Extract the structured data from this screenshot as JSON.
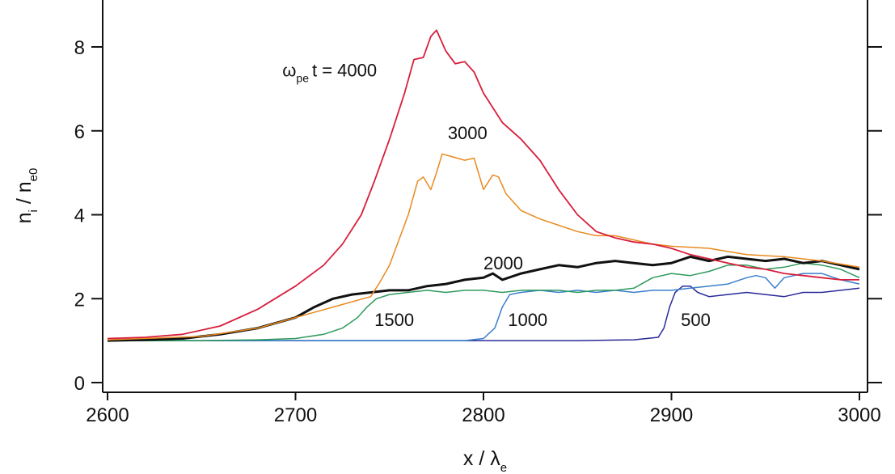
{
  "chart_data": {
    "type": "line",
    "title": "",
    "xlabel": {
      "main": "x / λ",
      "sub": "e"
    },
    "ylabel": {
      "part1": "n",
      "sub1": "i",
      "part2": " / n",
      "sub2": "e0"
    },
    "xlim": [
      2600,
      3000
    ],
    "ylim": [
      -0.2,
      9.2
    ],
    "x_ticks": [
      2600,
      2700,
      2800,
      2900,
      3000
    ],
    "y_ticks": [
      0,
      2,
      4,
      6,
      8
    ],
    "grid": false,
    "legend": "none",
    "series": [
      {
        "name": "500",
        "label_prefix": "",
        "label_sub": "",
        "label_text": "500",
        "label_at": [
          2905,
          1.35
        ],
        "color": "#2a2a9a",
        "stroke_width": 1.5,
        "points": [
          [
            2600,
            1.0
          ],
          [
            2650,
            1.0
          ],
          [
            2700,
            1.0
          ],
          [
            2750,
            1.0
          ],
          [
            2800,
            1.0
          ],
          [
            2850,
            1.0
          ],
          [
            2880,
            1.02
          ],
          [
            2893,
            1.08
          ],
          [
            2896,
            1.3
          ],
          [
            2899,
            1.8
          ],
          [
            2902,
            2.15
          ],
          [
            2906,
            2.3
          ],
          [
            2910,
            2.3
          ],
          [
            2914,
            2.15
          ],
          [
            2920,
            2.05
          ],
          [
            2930,
            2.1
          ],
          [
            2940,
            2.15
          ],
          [
            2950,
            2.1
          ],
          [
            2960,
            2.05
          ],
          [
            2970,
            2.15
          ],
          [
            2980,
            2.15
          ],
          [
            2990,
            2.2
          ],
          [
            3000,
            2.25
          ]
        ]
      },
      {
        "name": "1000",
        "label_prefix": "",
        "label_sub": "",
        "label_text": "1000",
        "label_at": [
          2813,
          1.35
        ],
        "color": "#3a7fcc",
        "stroke_width": 1.5,
        "points": [
          [
            2600,
            1.0
          ],
          [
            2700,
            1.0
          ],
          [
            2790,
            1.0
          ],
          [
            2800,
            1.05
          ],
          [
            2806,
            1.3
          ],
          [
            2810,
            1.8
          ],
          [
            2814,
            2.1
          ],
          [
            2820,
            2.15
          ],
          [
            2830,
            2.2
          ],
          [
            2840,
            2.15
          ],
          [
            2850,
            2.2
          ],
          [
            2860,
            2.15
          ],
          [
            2870,
            2.2
          ],
          [
            2880,
            2.15
          ],
          [
            2890,
            2.2
          ],
          [
            2900,
            2.2
          ],
          [
            2910,
            2.25
          ],
          [
            2920,
            2.3
          ],
          [
            2930,
            2.35
          ],
          [
            2940,
            2.5
          ],
          [
            2945,
            2.55
          ],
          [
            2950,
            2.5
          ],
          [
            2955,
            2.25
          ],
          [
            2960,
            2.5
          ],
          [
            2970,
            2.6
          ],
          [
            2980,
            2.6
          ],
          [
            2990,
            2.45
          ],
          [
            3000,
            2.35
          ]
        ]
      },
      {
        "name": "1500",
        "label_prefix": "",
        "label_sub": "",
        "label_text": "1500",
        "label_at": [
          2742,
          1.35
        ],
        "color": "#2e9a5c",
        "stroke_width": 1.5,
        "points": [
          [
            2600,
            1.0
          ],
          [
            2650,
            1.0
          ],
          [
            2680,
            1.02
          ],
          [
            2700,
            1.05
          ],
          [
            2715,
            1.15
          ],
          [
            2725,
            1.3
          ],
          [
            2733,
            1.55
          ],
          [
            2738,
            1.8
          ],
          [
            2743,
            2.0
          ],
          [
            2750,
            2.1
          ],
          [
            2760,
            2.15
          ],
          [
            2770,
            2.2
          ],
          [
            2780,
            2.15
          ],
          [
            2790,
            2.2
          ],
          [
            2800,
            2.2
          ],
          [
            2810,
            2.15
          ],
          [
            2820,
            2.2
          ],
          [
            2830,
            2.2
          ],
          [
            2840,
            2.2
          ],
          [
            2850,
            2.15
          ],
          [
            2860,
            2.2
          ],
          [
            2870,
            2.2
          ],
          [
            2880,
            2.25
          ],
          [
            2890,
            2.5
          ],
          [
            2900,
            2.6
          ],
          [
            2910,
            2.55
          ],
          [
            2920,
            2.65
          ],
          [
            2930,
            2.8
          ],
          [
            2940,
            2.8
          ],
          [
            2950,
            2.7
          ],
          [
            2960,
            2.75
          ],
          [
            2970,
            2.85
          ],
          [
            2980,
            2.8
          ],
          [
            2990,
            2.7
          ],
          [
            3000,
            2.5
          ]
        ]
      },
      {
        "name": "2000",
        "label_prefix": "",
        "label_sub": "",
        "label_text": "2000",
        "label_at": [
          2800,
          2.7
        ],
        "color": "#111111",
        "stroke_width": 3,
        "points": [
          [
            2600,
            1.0
          ],
          [
            2620,
            1.02
          ],
          [
            2640,
            1.05
          ],
          [
            2660,
            1.15
          ],
          [
            2680,
            1.3
          ],
          [
            2700,
            1.55
          ],
          [
            2710,
            1.8
          ],
          [
            2720,
            2.0
          ],
          [
            2730,
            2.1
          ],
          [
            2740,
            2.15
          ],
          [
            2750,
            2.2
          ],
          [
            2760,
            2.2
          ],
          [
            2770,
            2.3
          ],
          [
            2780,
            2.35
          ],
          [
            2790,
            2.45
          ],
          [
            2800,
            2.5
          ],
          [
            2805,
            2.6
          ],
          [
            2810,
            2.45
          ],
          [
            2820,
            2.6
          ],
          [
            2830,
            2.7
          ],
          [
            2840,
            2.8
          ],
          [
            2850,
            2.75
          ],
          [
            2860,
            2.85
          ],
          [
            2870,
            2.9
          ],
          [
            2880,
            2.85
          ],
          [
            2890,
            2.8
          ],
          [
            2900,
            2.85
          ],
          [
            2910,
            3.0
          ],
          [
            2920,
            2.9
          ],
          [
            2930,
            3.0
          ],
          [
            2940,
            2.95
          ],
          [
            2950,
            2.9
          ],
          [
            2960,
            2.95
          ],
          [
            2970,
            2.85
          ],
          [
            2980,
            2.9
          ],
          [
            2990,
            2.8
          ],
          [
            3000,
            2.7
          ]
        ]
      },
      {
        "name": "3000",
        "label_prefix": "",
        "label_sub": "",
        "label_text": "3000",
        "label_at": [
          2781,
          5.8
        ],
        "color": "#e88a1f",
        "stroke_width": 1.5,
        "points": [
          [
            2600,
            1.02
          ],
          [
            2650,
            1.1
          ],
          [
            2680,
            1.3
          ],
          [
            2700,
            1.55
          ],
          [
            2720,
            1.8
          ],
          [
            2740,
            2.05
          ],
          [
            2745,
            2.4
          ],
          [
            2750,
            2.8
          ],
          [
            2755,
            3.4
          ],
          [
            2760,
            4.0
          ],
          [
            2765,
            4.8
          ],
          [
            2768,
            4.9
          ],
          [
            2772,
            4.6
          ],
          [
            2775,
            5.0
          ],
          [
            2778,
            5.45
          ],
          [
            2782,
            5.4
          ],
          [
            2790,
            5.3
          ],
          [
            2795,
            5.35
          ],
          [
            2800,
            4.6
          ],
          [
            2805,
            4.95
          ],
          [
            2808,
            4.9
          ],
          [
            2812,
            4.5
          ],
          [
            2820,
            4.1
          ],
          [
            2830,
            3.9
          ],
          [
            2840,
            3.75
          ],
          [
            2850,
            3.6
          ],
          [
            2860,
            3.5
          ],
          [
            2870,
            3.5
          ],
          [
            2880,
            3.4
          ],
          [
            2890,
            3.3
          ],
          [
            2900,
            3.25
          ],
          [
            2920,
            3.2
          ],
          [
            2940,
            3.05
          ],
          [
            2960,
            3.0
          ],
          [
            2980,
            2.9
          ],
          [
            3000,
            2.75
          ]
        ]
      },
      {
        "name": "4000",
        "label_prefix": "ω",
        "label_sub": "pe",
        "label_text": "t = 4000",
        "label_at": [
          2693,
          7.3
        ],
        "color": "#d81e3c",
        "stroke_width": 1.8,
        "points": [
          [
            2600,
            1.05
          ],
          [
            2620,
            1.08
          ],
          [
            2640,
            1.15
          ],
          [
            2660,
            1.35
          ],
          [
            2680,
            1.75
          ],
          [
            2700,
            2.3
          ],
          [
            2715,
            2.8
          ],
          [
            2725,
            3.3
          ],
          [
            2735,
            4.0
          ],
          [
            2742,
            4.8
          ],
          [
            2750,
            5.8
          ],
          [
            2758,
            6.9
          ],
          [
            2763,
            7.7
          ],
          [
            2768,
            7.75
          ],
          [
            2772,
            8.25
          ],
          [
            2775,
            8.4
          ],
          [
            2780,
            7.9
          ],
          [
            2785,
            7.6
          ],
          [
            2790,
            7.65
          ],
          [
            2795,
            7.4
          ],
          [
            2800,
            6.9
          ],
          [
            2810,
            6.2
          ],
          [
            2820,
            5.8
          ],
          [
            2830,
            5.3
          ],
          [
            2840,
            4.6
          ],
          [
            2850,
            4.0
          ],
          [
            2860,
            3.6
          ],
          [
            2870,
            3.45
          ],
          [
            2880,
            3.35
          ],
          [
            2890,
            3.3
          ],
          [
            2900,
            3.2
          ],
          [
            2910,
            3.05
          ],
          [
            2920,
            2.95
          ],
          [
            2930,
            2.85
          ],
          [
            2940,
            2.75
          ],
          [
            2950,
            2.7
          ],
          [
            2960,
            2.6
          ],
          [
            2970,
            2.55
          ],
          [
            2980,
            2.5
          ],
          [
            2990,
            2.45
          ],
          [
            3000,
            2.45
          ]
        ]
      }
    ]
  }
}
